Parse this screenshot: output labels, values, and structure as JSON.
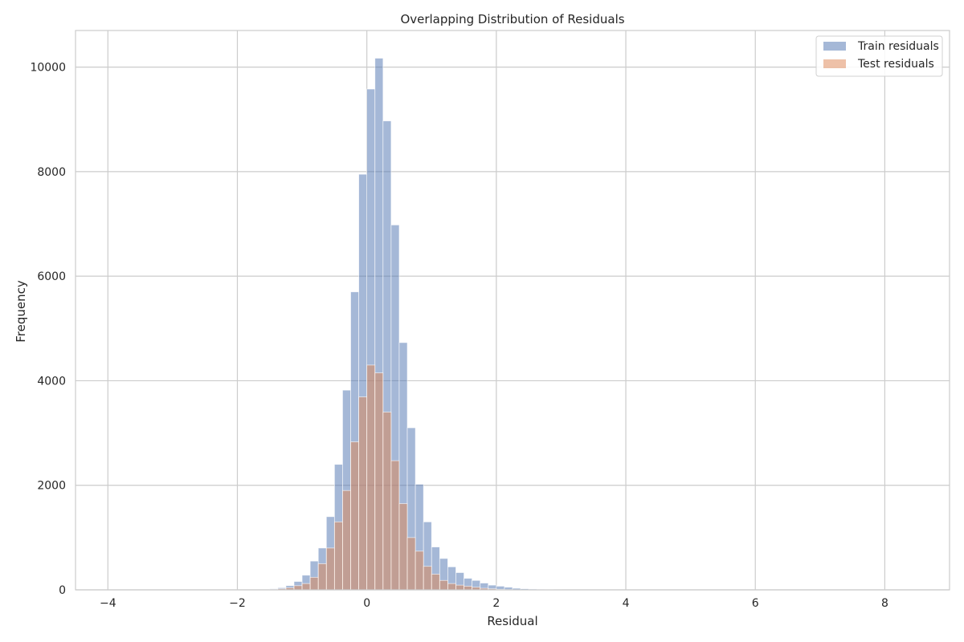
{
  "chart_data": {
    "type": "histogram",
    "title": "Overlapping Distribution of Residuals",
    "xlabel": "Residual",
    "ylabel": "Frequency",
    "xlim": [
      -4.5,
      9.0
    ],
    "ylim": [
      0,
      10700
    ],
    "x_ticks": [
      -4,
      -2,
      0,
      2,
      4,
      6,
      8
    ],
    "x_tick_labels": [
      "−4",
      "−2",
      "0",
      "2",
      "4",
      "6",
      "8"
    ],
    "y_ticks": [
      0,
      2000,
      4000,
      6000,
      8000,
      10000
    ],
    "y_tick_labels": [
      "0",
      "2000",
      "4000",
      "6000",
      "8000",
      "10000"
    ],
    "grid": true,
    "legend_position": "top-right",
    "bin_width": 0.125,
    "series": [
      {
        "name": "Train residuals",
        "color": "#4c72b0",
        "opacity": 0.5,
        "bin_start": -1.5,
        "values": [
          20,
          40,
          80,
          160,
          280,
          550,
          800,
          1400,
          2400,
          3820,
          5700,
          7950,
          9580,
          10170,
          8970,
          6980,
          4730,
          3100,
          2020,
          1300,
          820,
          600,
          440,
          330,
          220,
          180,
          130,
          90,
          70,
          50,
          30,
          20,
          15,
          10,
          8,
          5
        ]
      },
      {
        "name": "Test residuals",
        "color": "#dd8452",
        "opacity": 0.5,
        "bin_start": -1.5,
        "values": [
          10,
          20,
          40,
          80,
          120,
          240,
          500,
          800,
          1300,
          1900,
          2830,
          3690,
          4300,
          4150,
          3400,
          2470,
          1650,
          1000,
          740,
          450,
          300,
          180,
          120,
          90,
          70,
          50,
          30,
          20,
          10,
          5
        ]
      }
    ]
  }
}
